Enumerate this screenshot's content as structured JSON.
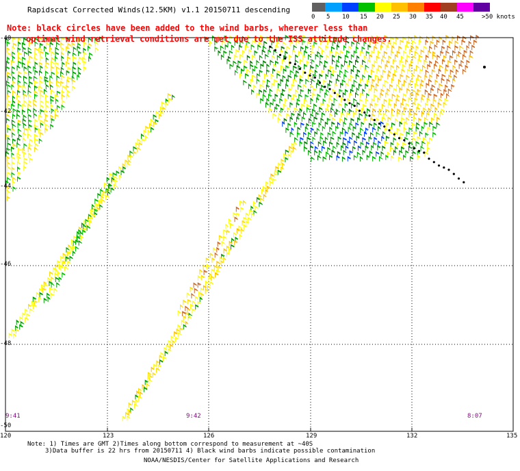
{
  "title": "Rapidscat Corrected Winds(12.5KM) v1.1 20150711 descending",
  "note_line1": "Note: black circles have been added to the wind barbs, wherever less than",
  "note_line2": "optimal wind retrieval conditions are met due to the ISS attitude changes.",
  "legend": {
    "labels": [
      "0",
      "5",
      "10",
      "15",
      "20",
      "25",
      "30",
      "35",
      "40",
      "45",
      ">50 knots"
    ],
    "colors": [
      "#606060",
      "#00a0ff",
      "#0040ff",
      "#00c000",
      "#ffff00",
      "#ffc000",
      "#ff8000",
      "#ff0000",
      "#a04020",
      "#ff00ff",
      "#6000a0"
    ]
  },
  "lon_labels": [
    "120",
    "123",
    "126",
    "129",
    "132",
    "135"
  ],
  "lat_labels": [
    "-40",
    "-42",
    "-44",
    "-46",
    "-48",
    "-50"
  ],
  "times": [
    "9:41",
    "9:42",
    "8:07"
  ],
  "footnote1": "Note: 1) Times are GMT 2)Times along bottom correspond to measurement at ~40S",
  "footnote2": "3)Data buffer is 22 hrs from 20150711 4) Black wind barbs indicate possible contamination",
  "credit": "NOAA/NESDIS/Center for Satellite Applications and Research"
}
